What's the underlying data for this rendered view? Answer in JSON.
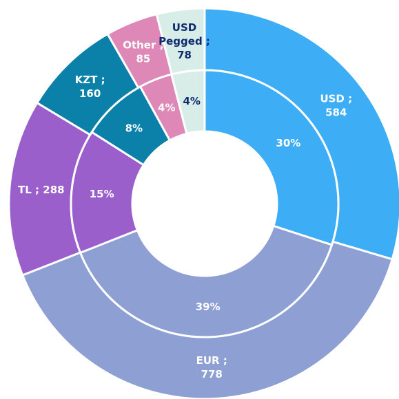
{
  "chart_data": {
    "type": "donut",
    "categories": [
      "USD",
      "EUR",
      "TL",
      "KZT",
      "Other",
      "USD Pegged"
    ],
    "colors": [
      "#3dadf6",
      "#8e9fd4",
      "#9b5fcc",
      "#0b80a8",
      "#dd88b6",
      "#d9ede8"
    ],
    "label_colors": [
      "#ffffff",
      "#ffffff",
      "#ffffff",
      "#ffffff",
      "#ffffff",
      "#0d2a6e"
    ],
    "series": [
      {
        "values": [
          584,
          778,
          288,
          160,
          85,
          78
        ],
        "value_labels": [
          "USD ; 584",
          "EUR ; 778",
          "TL ;  288",
          "KZT ; 160",
          "Other ; 85",
          "USD Pegged ; 78"
        ]
      },
      {
        "values": [
          30,
          39,
          15,
          8,
          4,
          4
        ],
        "value_labels": [
          "30%",
          "39%",
          "15%",
          "8%",
          "4%",
          "4%"
        ]
      }
    ]
  }
}
